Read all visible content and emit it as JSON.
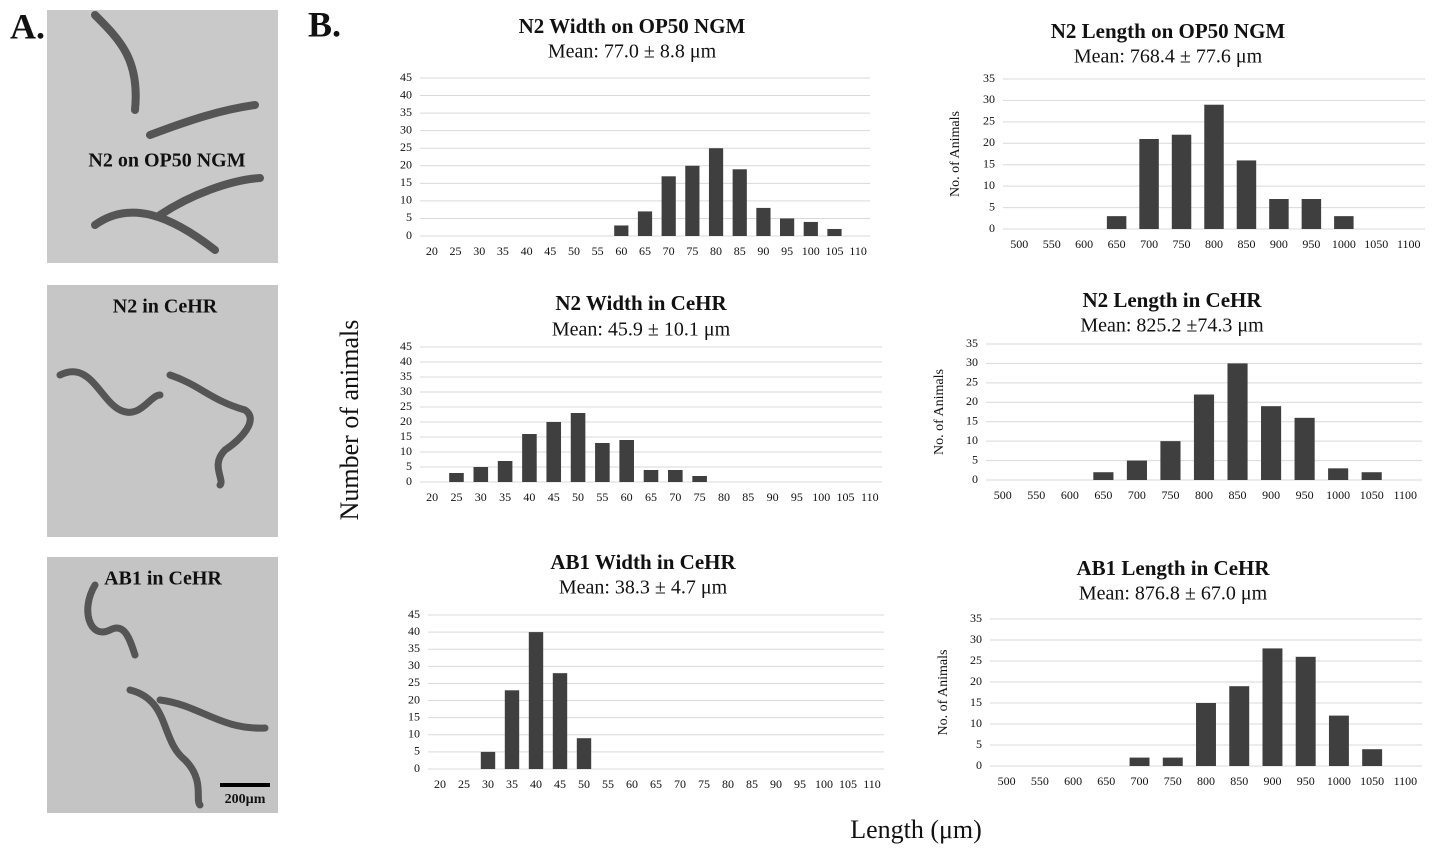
{
  "figure": {
    "panel_a": "A.",
    "panel_b": "B.",
    "images": [
      "N2 on OP50 NGM",
      "N2 in CeHR",
      "AB1 in CeHR"
    ],
    "scale_bar": "200µm",
    "ylabel": "Number of animals",
    "xlabel": "Length (μm)"
  },
  "chart_data": [
    {
      "type": "bar",
      "title": "N2 Width on OP50 NGM",
      "subtitle": "Mean: 77.0 ± 8.8 μm",
      "categories": [
        "20",
        "25",
        "30",
        "35",
        "40",
        "45",
        "50",
        "55",
        "60",
        "65",
        "70",
        "75",
        "80",
        "85",
        "90",
        "95",
        "100",
        "105",
        "110"
      ],
      "values": [
        0,
        0,
        0,
        0,
        0,
        0,
        0,
        0,
        3,
        7,
        17,
        20,
        25,
        19,
        8,
        5,
        4,
        2,
        0
      ],
      "color": "#3f3f3f",
      "ylim": [
        0,
        45
      ],
      "yticks": [
        0,
        5,
        10,
        15,
        20,
        25,
        30,
        35,
        40,
        45
      ],
      "grid": true
    },
    {
      "type": "bar",
      "title": "N2 Length on OP50 NGM",
      "subtitle": "Mean: 768.4 ± 77.6 μm",
      "ylabel": "No. of Animals",
      "categories": [
        "500",
        "550",
        "600",
        "650",
        "700",
        "750",
        "800",
        "850",
        "900",
        "950",
        "1000",
        "1050",
        "1100"
      ],
      "values": [
        0,
        0,
        0,
        3,
        21,
        22,
        29,
        16,
        7,
        7,
        3,
        0,
        0
      ],
      "color": "#3f3f3f",
      "ylim": [
        0,
        35
      ],
      "yticks": [
        0,
        5,
        10,
        15,
        20,
        25,
        30,
        35
      ],
      "grid": true
    },
    {
      "type": "bar",
      "title": "N2 Width in CeHR",
      "subtitle": "Mean: 45.9 ± 10.1 μm",
      "categories": [
        "20",
        "25",
        "30",
        "35",
        "40",
        "45",
        "50",
        "55",
        "60",
        "65",
        "70",
        "75",
        "80",
        "85",
        "90",
        "95",
        "100",
        "105",
        "110"
      ],
      "values": [
        0,
        3,
        5,
        7,
        16,
        20,
        23,
        13,
        14,
        4,
        4,
        2,
        0,
        0,
        0,
        0,
        0,
        0,
        0
      ],
      "color": "#3f3f3f",
      "ylim": [
        0,
        45
      ],
      "yticks": [
        0,
        5,
        10,
        15,
        20,
        25,
        30,
        35,
        40,
        45
      ],
      "grid": true
    },
    {
      "type": "bar",
      "title": "N2 Length in CeHR",
      "subtitle": "Mean: 825.2 ±74.3 μm",
      "ylabel": "No. of Animals",
      "categories": [
        "500",
        "550",
        "600",
        "650",
        "700",
        "750",
        "800",
        "850",
        "900",
        "950",
        "1000",
        "1050",
        "1100"
      ],
      "values": [
        0,
        0,
        0,
        2,
        5,
        10,
        22,
        30,
        19,
        16,
        3,
        2,
        0
      ],
      "color": "#3f3f3f",
      "ylim": [
        0,
        35
      ],
      "yticks": [
        0,
        5,
        10,
        15,
        20,
        25,
        30,
        35
      ],
      "grid": true
    },
    {
      "type": "bar",
      "title": "AB1 Width in CeHR",
      "subtitle": "Mean: 38.3 ± 4.7 μm",
      "categories": [
        "20",
        "25",
        "30",
        "35",
        "40",
        "45",
        "50",
        "55",
        "60",
        "65",
        "70",
        "75",
        "80",
        "85",
        "90",
        "95",
        "100",
        "105",
        "110"
      ],
      "values": [
        0,
        0,
        5,
        23,
        40,
        28,
        9,
        0,
        0,
        0,
        0,
        0,
        0,
        0,
        0,
        0,
        0,
        0,
        0
      ],
      "color": "#3f3f3f",
      "ylim": [
        0,
        45
      ],
      "yticks": [
        0,
        5,
        10,
        15,
        20,
        25,
        30,
        35,
        40,
        45
      ],
      "grid": true
    },
    {
      "type": "bar",
      "title": "AB1 Length in CeHR",
      "subtitle": "Mean: 876.8 ± 67.0 μm",
      "ylabel": "No. of Animals",
      "categories": [
        "500",
        "550",
        "600",
        "650",
        "700",
        "750",
        "800",
        "850",
        "900",
        "950",
        "1000",
        "1050",
        "1100"
      ],
      "values": [
        0,
        0,
        0,
        0,
        2,
        2,
        15,
        19,
        28,
        26,
        12,
        4,
        0
      ],
      "color": "#3f3f3f",
      "ylim": [
        0,
        35
      ],
      "yticks": [
        0,
        5,
        10,
        15,
        20,
        25,
        30,
        35
      ],
      "grid": true
    }
  ]
}
